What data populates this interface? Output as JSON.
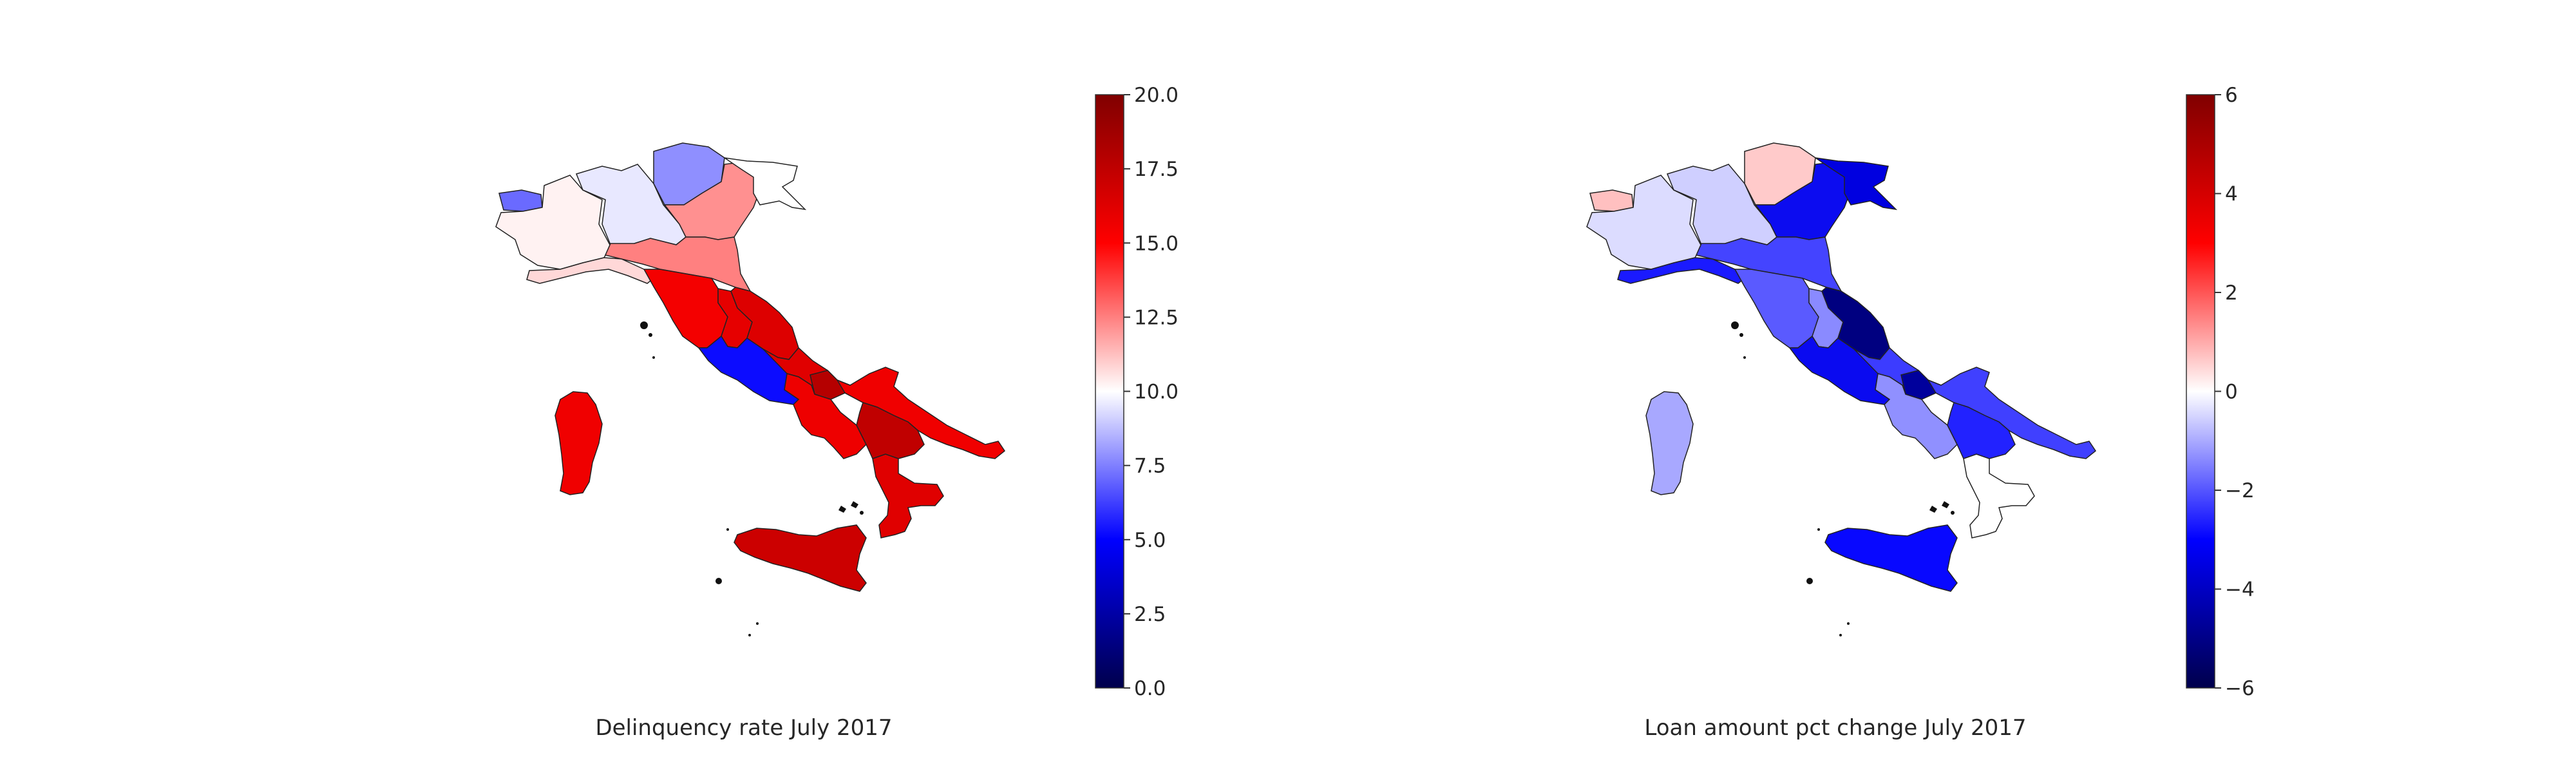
{
  "maps": [
    {
      "caption": "Delinquency rate July 2017",
      "colorbar": {
        "min": 0,
        "max": 20,
        "ticks": [
          "0.0",
          "2.5",
          "5.0",
          "7.5",
          "10.0",
          "12.5",
          "15.0",
          "17.5",
          "20.0"
        ]
      },
      "colors": {
        "valle_daosta": "#6a6aff",
        "piemonte": "#fff2f2",
        "liguria": "#ffd8d8",
        "lombardia": "#e8e8ff",
        "trentino": "#8f8fff",
        "veneto": "#ff9090",
        "friuli": "#ffffff",
        "emilia": "#ff8080",
        "toscana": "#f40000",
        "umbria": "#e60000",
        "marche": "#dd0000",
        "lazio": "#0c0cff",
        "abruzzo": "#e00000",
        "molise": "#b50000",
        "campania": "#ee0000",
        "puglia": "#f00000",
        "basilicata": "#c00000",
        "calabria": "#e00000",
        "sicilia": "#cc0000",
        "sardegna": "#f00000"
      }
    },
    {
      "caption": "Loan amount pct change July 2017",
      "colorbar": {
        "min": -6,
        "max": 6,
        "ticks": [
          "-6",
          "-4",
          "-2",
          "0",
          "2",
          "4",
          "6"
        ]
      },
      "colors": {
        "valle_daosta": "#ffc0c0",
        "piemonte": "#dcdcff",
        "liguria": "#1a1aff",
        "lombardia": "#cfcfff",
        "trentino": "#ffcaca",
        "veneto": "#0c0cf0",
        "friuli": "#0000e0",
        "emilia": "#4444ff",
        "toscana": "#5a5aff",
        "umbria": "#8a8aff",
        "marche": "#000080",
        "lazio": "#0a0af0",
        "abruzzo": "#3c3cff",
        "molise": "#00009c",
        "campania": "#9090ff",
        "puglia": "#4040ff",
        "basilicata": "#2222ff",
        "calabria": "#ffffff",
        "sicilia": "#0808ff",
        "sardegna": "#a8a8ff"
      }
    }
  ]
}
